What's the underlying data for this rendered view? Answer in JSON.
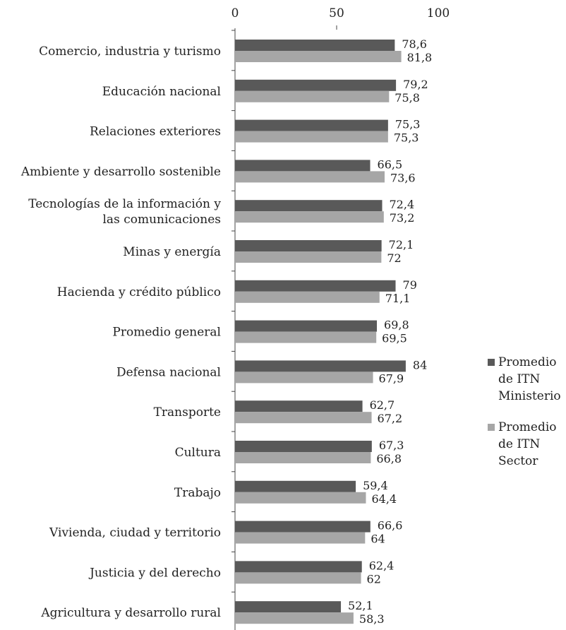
{
  "chart_data": {
    "type": "bar",
    "orientation": "horizontal",
    "title": "",
    "xlabel": "",
    "ylabel": "",
    "xlim": [
      0,
      100
    ],
    "xticks": [
      "0",
      "50",
      "100"
    ],
    "grid": false,
    "legend_position": "right",
    "categories": [
      [
        "Comercio, industria y turismo"
      ],
      [
        "Educación nacional"
      ],
      [
        "Relaciones exteriores"
      ],
      [
        "Ambiente y desarrollo sostenible"
      ],
      [
        "Tecnologías de la información y",
        "las comunicaciones"
      ],
      [
        "Minas y energía"
      ],
      [
        "Hacienda y crédito público"
      ],
      [
        "Promedio general"
      ],
      [
        "Defensa nacional"
      ],
      [
        "Transporte"
      ],
      [
        "Cultura"
      ],
      [
        "Trabajo"
      ],
      [
        "Vivienda, ciudad y territorio"
      ],
      [
        "Justicia y del derecho"
      ],
      [
        "Agricultura y desarrollo rural"
      ]
    ],
    "series": [
      {
        "name": [
          "Promedio",
          "de ITN",
          "Ministerio"
        ],
        "color": "#595959",
        "values": [
          78.6,
          79.2,
          75.3,
          66.5,
          72.4,
          72.1,
          79,
          69.8,
          84,
          62.7,
          67.3,
          59.4,
          66.6,
          62.4,
          52.1
        ],
        "labels": [
          "78,6",
          "79,2",
          "75,3",
          "66,5",
          "72,4",
          "72,1",
          "79",
          "69,8",
          "84",
          "62,7",
          "67,3",
          "59,4",
          "66,6",
          "62,4",
          "52,1"
        ]
      },
      {
        "name": [
          "Promedio",
          "de  ITN",
          "Sector"
        ],
        "color": "#a6a6a6",
        "values": [
          81.8,
          75.8,
          75.3,
          73.6,
          73.2,
          72,
          71.1,
          69.5,
          67.9,
          67.2,
          66.8,
          64.4,
          64,
          62,
          58.3
        ],
        "labels": [
          "81,8",
          "75,8",
          "75,3",
          "73,6",
          "73,2",
          "72",
          "71,1",
          "69,5",
          "67,9",
          "67,2",
          "66,8",
          "64,4",
          "64",
          "62",
          "58,3"
        ]
      }
    ]
  }
}
